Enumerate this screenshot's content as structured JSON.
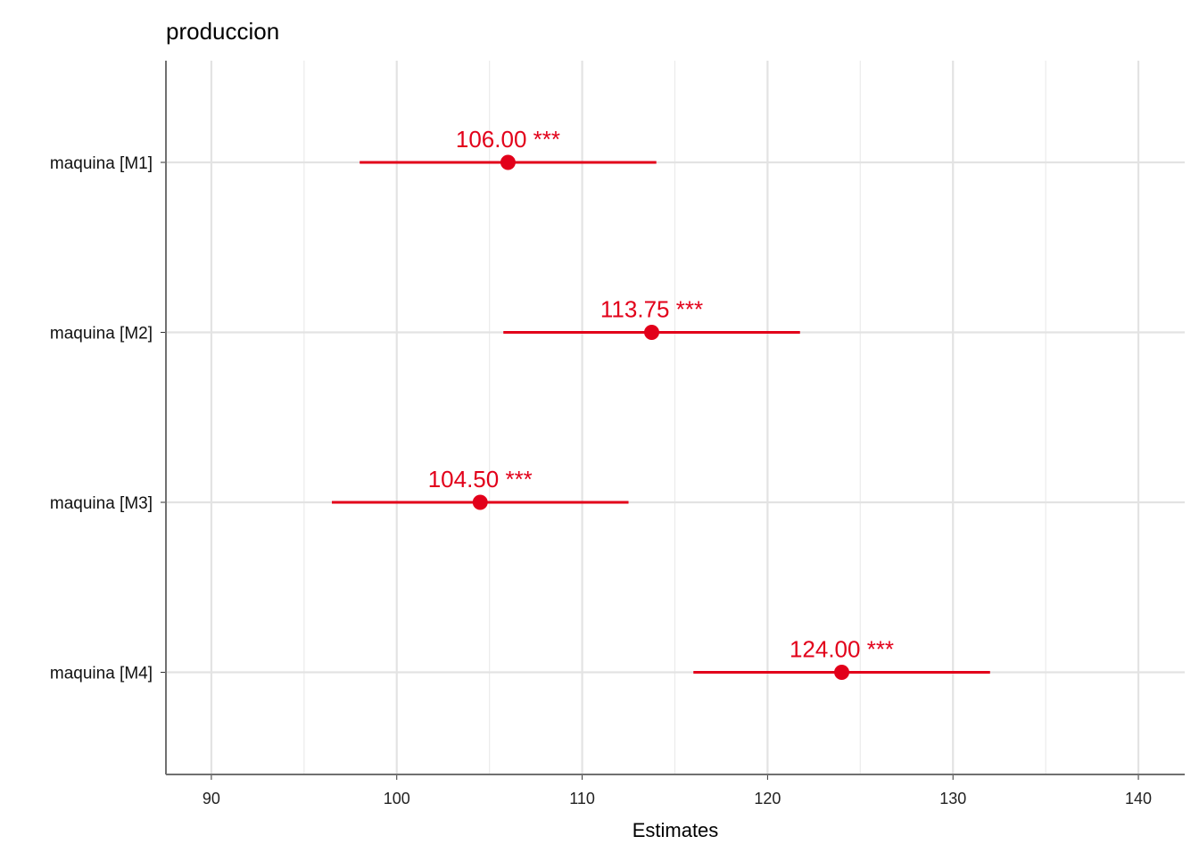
{
  "chart_data": {
    "type": "forest",
    "title": "produccion",
    "xlabel": "Estimates",
    "ylabel": "",
    "xlim": [
      87.55,
      142.5
    ],
    "x_ticks": [
      90,
      100,
      110,
      120,
      130,
      140
    ],
    "x_tick_labels": [
      "90",
      "100",
      "110",
      "120",
      "130",
      "140"
    ],
    "grid": true,
    "color": "#E2001A",
    "categories": [
      "maquina [M1]",
      "maquina [M2]",
      "maquina [M3]",
      "maquina [M4]"
    ],
    "estimates": [
      106.0,
      113.75,
      104.5,
      124.0
    ],
    "ci_low": [
      98.0,
      105.75,
      96.5,
      116.0
    ],
    "ci_high": [
      114.0,
      121.75,
      112.5,
      132.0
    ],
    "labels": [
      "106.00 ***",
      "113.75 ***",
      "104.50 ***",
      "124.00 ***"
    ]
  }
}
